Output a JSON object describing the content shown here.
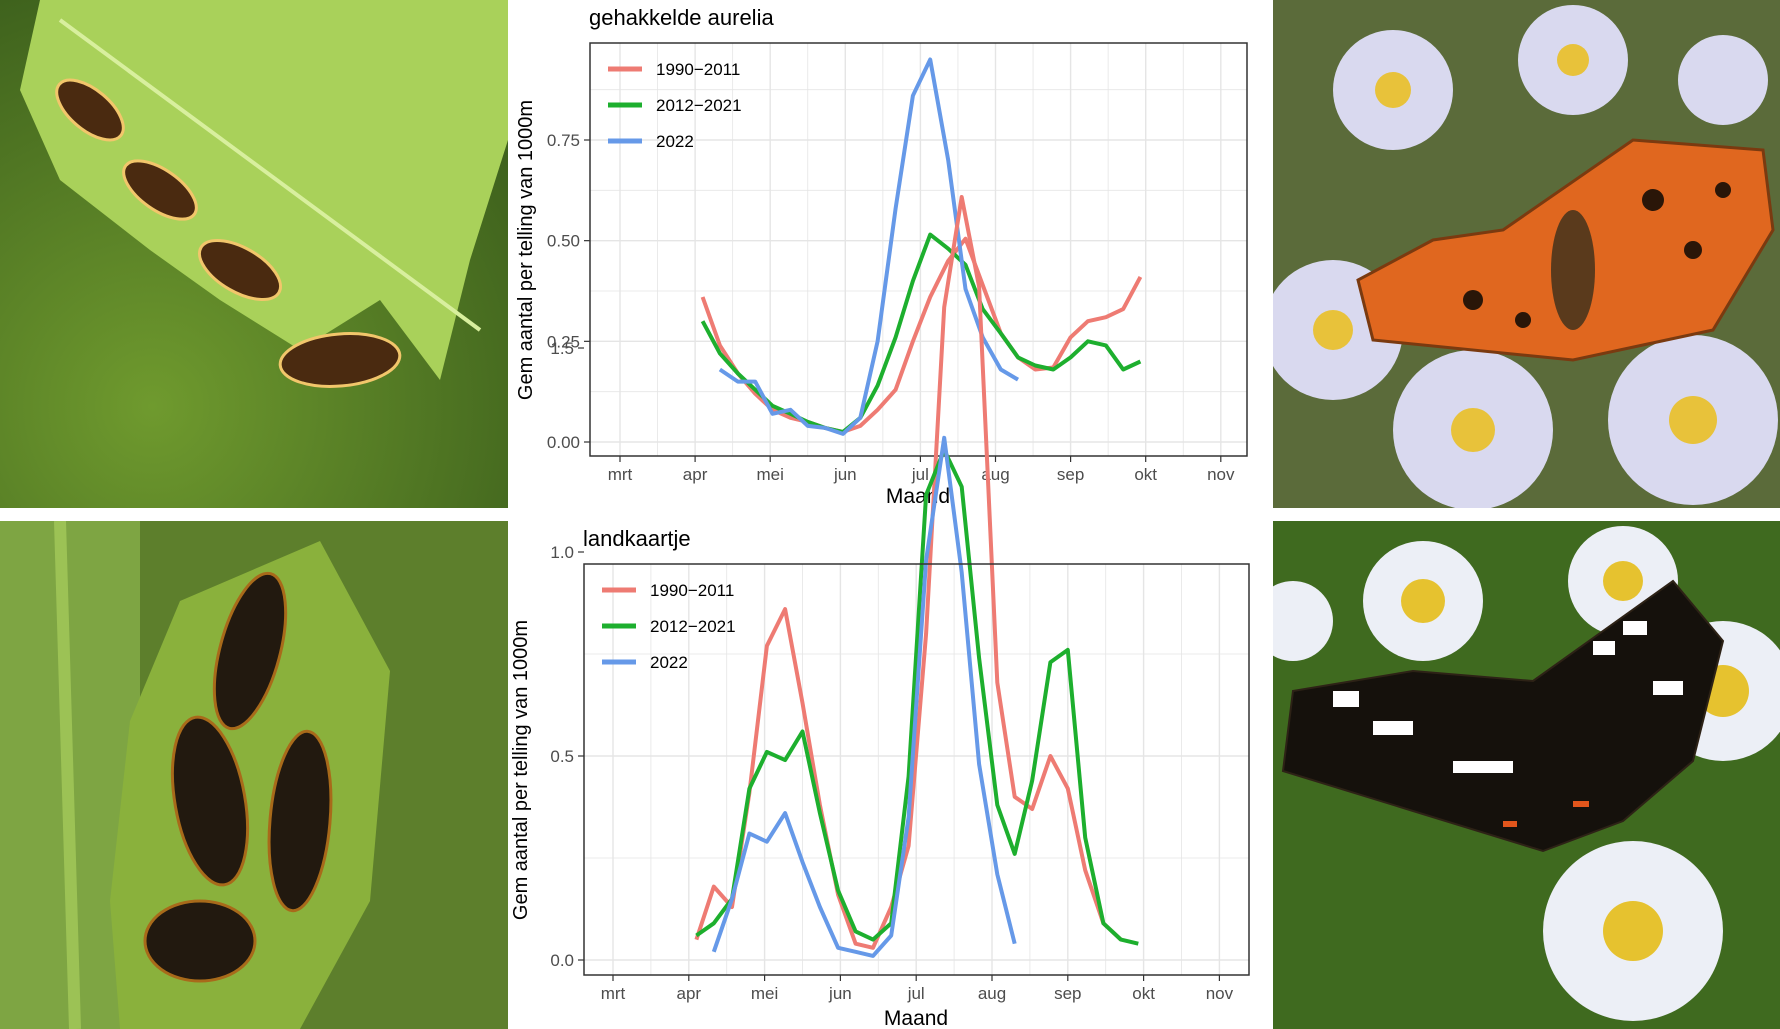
{
  "colors": {
    "series_1990_2011": "#EE7B73",
    "series_2012_2021": "#1DAF2E",
    "series_2022": "#6699E8",
    "grid": "#E5E5E5",
    "panel_border": "#333333"
  },
  "photos": [
    {
      "id": "photo-caterpillars-top",
      "subject": "gehakkelde aurelia caterpillars on nettle leaf"
    },
    {
      "id": "photo-butterfly-top",
      "subject": "gehakkelde aurelia butterfly on asters"
    },
    {
      "id": "photo-caterpillars-bottom",
      "subject": "landkaartje caterpillars on nettle"
    },
    {
      "id": "photo-butterfly-bottom",
      "subject": "landkaartje butterfly on asters"
    }
  ],
  "chart_data": [
    {
      "type": "line",
      "title": "gehakkelde aurelia",
      "xlabel": "Maand",
      "ylabel": "Gem aantal per telling van 1000m",
      "x_ticks": [
        "mrt",
        "apr",
        "mei",
        "jun",
        "jul",
        "aug",
        "sep",
        "okt",
        "nov"
      ],
      "y_ticks": [
        "0.00",
        "0.25",
        "0.50",
        "0.75"
      ],
      "xlim": [
        3,
        11
      ],
      "ylim": [
        0,
        0.97
      ],
      "grid": true,
      "legend_position": "top-left",
      "series": [
        {
          "name": "1990−2011",
          "color_key": "series_1990_2011",
          "x": [
            4.1,
            4.33,
            4.57,
            4.8,
            5.03,
            5.27,
            5.5,
            5.73,
            5.97,
            6.2,
            6.43,
            6.67,
            6.9,
            7.13,
            7.37,
            7.6,
            7.83,
            8.07,
            8.3,
            8.53,
            8.77,
            9.0,
            9.23,
            9.47,
            9.7,
            9.93
          ],
          "y": [
            0.36,
            0.24,
            0.17,
            0.12,
            0.08,
            0.06,
            0.05,
            0.035,
            0.025,
            0.04,
            0.08,
            0.13,
            0.25,
            0.36,
            0.45,
            0.505,
            0.39,
            0.27,
            0.21,
            0.18,
            0.185,
            0.26,
            0.3,
            0.31,
            0.33,
            0.41
          ]
        },
        {
          "name": "2012−2021",
          "color_key": "series_2012_2021",
          "x": [
            4.1,
            4.33,
            4.57,
            4.8,
            5.03,
            5.27,
            5.5,
            5.73,
            5.97,
            6.2,
            6.43,
            6.67,
            6.9,
            7.13,
            7.37,
            7.6,
            7.83,
            8.07,
            8.3,
            8.53,
            8.77,
            9.0,
            9.23,
            9.47,
            9.7,
            9.93
          ],
          "y": [
            0.3,
            0.22,
            0.17,
            0.13,
            0.09,
            0.07,
            0.05,
            0.035,
            0.025,
            0.06,
            0.14,
            0.26,
            0.4,
            0.515,
            0.48,
            0.44,
            0.33,
            0.27,
            0.21,
            0.19,
            0.18,
            0.21,
            0.25,
            0.24,
            0.18,
            0.2
          ]
        },
        {
          "name": "2022",
          "color_key": "series_2022",
          "x": [
            4.33,
            4.57,
            4.8,
            5.03,
            5.27,
            5.5,
            5.73,
            5.97,
            6.2,
            6.43,
            6.67,
            6.9,
            7.13,
            7.37,
            7.6,
            7.83,
            8.07,
            8.3
          ],
          "y": [
            0.18,
            0.15,
            0.15,
            0.07,
            0.08,
            0.04,
            0.035,
            0.02,
            0.06,
            0.25,
            0.58,
            0.86,
            0.95,
            0.7,
            0.38,
            0.26,
            0.18,
            0.155
          ]
        }
      ]
    },
    {
      "type": "line",
      "title": "landkaartje",
      "xlabel": "Maand",
      "ylabel": "Gem aantal per telling van 1000m",
      "x_ticks": [
        "mrt",
        "apr",
        "mei",
        "jun",
        "jul",
        "aug",
        "sep",
        "okt",
        "nov"
      ],
      "y_ticks": [
        "0.0",
        "0.5",
        "1.0",
        "1.5"
      ],
      "xlim": [
        3,
        11
      ],
      "ylim": [
        0,
        1.95
      ],
      "grid": true,
      "legend_position": "top-left",
      "series": [
        {
          "name": "1990−2011",
          "color_key": "series_1990_2011",
          "x": [
            4.1,
            4.33,
            4.57,
            4.8,
            5.03,
            5.27,
            5.5,
            5.73,
            5.97,
            6.2,
            6.43,
            6.67,
            6.9,
            7.13,
            7.37,
            7.6,
            7.83,
            8.07,
            8.3,
            8.53,
            8.77,
            9.0,
            9.23,
            9.47,
            9.7
          ],
          "y": [
            0.05,
            0.18,
            0.13,
            0.41,
            0.77,
            0.86,
            0.63,
            0.38,
            0.16,
            0.04,
            0.03,
            0.13,
            0.28,
            0.8,
            1.6,
            1.87,
            1.65,
            0.68,
            0.4,
            0.37,
            0.5,
            0.42,
            0.22,
            0.09,
            0.05
          ]
        },
        {
          "name": "2012−2021",
          "color_key": "series_2012_2021",
          "x": [
            4.1,
            4.33,
            4.57,
            4.8,
            5.03,
            5.27,
            5.5,
            5.73,
            5.97,
            6.2,
            6.43,
            6.67,
            6.9,
            7.13,
            7.37,
            7.6,
            7.83,
            8.07,
            8.3,
            8.53,
            8.77,
            9.0,
            9.23,
            9.47,
            9.7,
            9.93
          ],
          "y": [
            0.06,
            0.09,
            0.15,
            0.42,
            0.51,
            0.49,
            0.56,
            0.36,
            0.17,
            0.07,
            0.05,
            0.09,
            0.45,
            1.14,
            1.25,
            1.16,
            0.74,
            0.38,
            0.26,
            0.44,
            0.73,
            0.76,
            0.3,
            0.09,
            0.05,
            0.04
          ]
        },
        {
          "name": "2022",
          "color_key": "series_2022",
          "x": [
            4.33,
            4.57,
            4.8,
            5.03,
            5.27,
            5.5,
            5.73,
            5.97,
            6.2,
            6.43,
            6.67,
            6.9,
            7.13,
            7.37,
            7.6,
            7.83,
            8.07,
            8.3
          ],
          "y": [
            0.02,
            0.15,
            0.31,
            0.29,
            0.36,
            0.24,
            0.13,
            0.03,
            0.02,
            0.01,
            0.06,
            0.35,
            0.98,
            1.28,
            0.95,
            0.48,
            0.21,
            0.04
          ]
        }
      ]
    }
  ]
}
